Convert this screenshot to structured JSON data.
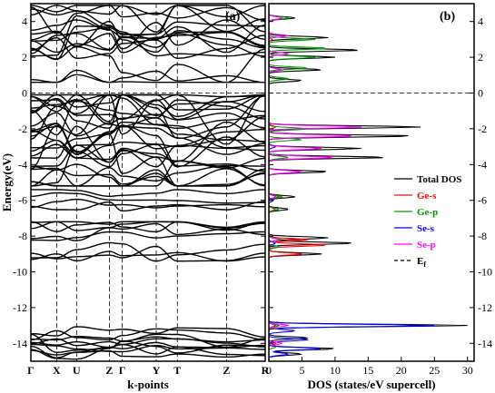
{
  "chart_data": [
    {
      "panel_label": "(a)",
      "type": "line",
      "title": "",
      "xlabel": "k-points",
      "ylabel": "Energy(eV)",
      "ylim": [
        -15,
        5
      ],
      "yticks": [
        4,
        2,
        0,
        -2,
        -4,
        -6,
        -8,
        -10,
        -12,
        -14
      ],
      "ytick_labels": [
        "4",
        "2",
        "0",
        "-2",
        "-4",
        "-6",
        "-8",
        "-10",
        "-12",
        "-14"
      ],
      "kpoints": [
        {
          "label": "Γ",
          "x": 0.0
        },
        {
          "label": "X",
          "x": 0.11
        },
        {
          "label": "U",
          "x": 0.195
        },
        {
          "label": "Z",
          "x": 0.335
        },
        {
          "label": "Γ",
          "x": 0.39
        },
        {
          "label": "Y",
          "x": 0.535
        },
        {
          "label": "T",
          "x": 0.625
        },
        {
          "label": "Z",
          "x": 0.835
        },
        {
          "label": "R",
          "x": 1.0
        }
      ],
      "fermi_level": 0,
      "band_groups": [
        {
          "emin": 0.6,
          "emax": 4.9,
          "count": 16
        },
        {
          "emin": -5.2,
          "emax": -0.1,
          "count": 26
        },
        {
          "emin": -6.9,
          "emax": -5.4,
          "count": 4
        },
        {
          "emin": -9.4,
          "emax": -7.2,
          "count": 8
        },
        {
          "emin": -14.9,
          "emax": -12.8,
          "count": 10
        }
      ]
    },
    {
      "panel_label": "(b)",
      "type": "line",
      "title": "",
      "xlabel": "DOS (states/eV supercell)",
      "xlim": [
        0,
        31
      ],
      "xticks": [
        0,
        5,
        10,
        15,
        20,
        25,
        30
      ],
      "xtick_labels": [
        "0",
        "5",
        "10",
        "15",
        "20",
        "25",
        "30"
      ],
      "ylim": [
        -15,
        5
      ],
      "yticks": [
        4,
        2,
        0,
        -2,
        -4,
        -6,
        -8,
        -10,
        -12,
        -14
      ],
      "ytick_labels": [
        "4",
        "2",
        "0",
        "-2",
        "-4",
        "-6",
        "-8",
        "-10",
        "-12",
        "-14"
      ],
      "fermi_level": 0,
      "legend_position": "right",
      "legend": [
        {
          "label": "Total DOS",
          "color": "#000000",
          "dashed": false
        },
        {
          "label": "Ge-s",
          "color": "#ff0000",
          "dashed": false
        },
        {
          "label": "Ge-p",
          "color": "#009900",
          "dashed": false
        },
        {
          "label": "Se-s",
          "color": "#0000ff",
          "dashed": false
        },
        {
          "label": "Se-p",
          "color": "#ff00ff",
          "dashed": false
        },
        {
          "label": "E",
          "subscript": "f",
          "color": "#000000",
          "dashed": true
        }
      ],
      "series": [
        {
          "name": "Total DOS",
          "color": "#000000",
          "peaks": [
            [
              4.2,
              4
            ],
            [
              3.1,
              9
            ],
            [
              2.4,
              14
            ],
            [
              2.0,
              10
            ],
            [
              1.3,
              8
            ],
            [
              0.7,
              5
            ],
            [
              -1.9,
              23
            ],
            [
              -2.4,
              22
            ],
            [
              -3.1,
              14
            ],
            [
              -3.6,
              18
            ],
            [
              -4.4,
              9
            ],
            [
              -5.8,
              4
            ],
            [
              -6.5,
              3
            ],
            [
              -8.1,
              9
            ],
            [
              -8.4,
              13
            ],
            [
              -9.0,
              8
            ],
            [
              -13.0,
              30
            ],
            [
              -13.7,
              6
            ],
            [
              -14.3,
              10
            ],
            [
              -14.6,
              5
            ]
          ]
        },
        {
          "name": "Ge-s",
          "color": "#ff0000",
          "peaks": [
            [
              3.0,
              0.5
            ],
            [
              -1.9,
              1
            ],
            [
              -5.8,
              1.5
            ],
            [
              -6.5,
              1
            ],
            [
              -8.2,
              6
            ],
            [
              -8.5,
              9
            ],
            [
              -9.0,
              5
            ],
            [
              -13.0,
              1
            ],
            [
              -14.0,
              1
            ]
          ]
        },
        {
          "name": "Ge-p",
          "color": "#009900",
          "peaks": [
            [
              4.2,
              3
            ],
            [
              3.0,
              7
            ],
            [
              2.5,
              9
            ],
            [
              2.0,
              7
            ],
            [
              1.4,
              6
            ],
            [
              0.8,
              3
            ],
            [
              -2.0,
              6
            ],
            [
              -2.6,
              5
            ],
            [
              -3.6,
              3
            ],
            [
              -5.8,
              2
            ],
            [
              -6.5,
              1.5
            ],
            [
              -8.2,
              2
            ],
            [
              -8.6,
              1.5
            ],
            [
              -13.0,
              1.5
            ],
            [
              -14.2,
              1
            ]
          ]
        },
        {
          "name": "Se-s",
          "color": "#0000ff",
          "peaks": [
            [
              -3.0,
              1
            ],
            [
              -6.0,
              0.7
            ],
            [
              -8.4,
              1
            ],
            [
              -13.0,
              25
            ],
            [
              -13.3,
              4
            ],
            [
              -13.8,
              6
            ],
            [
              -14.3,
              8
            ],
            [
              -14.6,
              3
            ]
          ]
        },
        {
          "name": "Se-p",
          "color": "#ff00ff",
          "peaks": [
            [
              4.2,
              2
            ],
            [
              3.2,
              3
            ],
            [
              2.2,
              3
            ],
            [
              1.3,
              2
            ],
            [
              -1.9,
              14
            ],
            [
              -2.4,
              13
            ],
            [
              -3.1,
              8
            ],
            [
              -3.6,
              10
            ],
            [
              -4.4,
              5
            ],
            [
              -5.8,
              1
            ],
            [
              -8.2,
              1.5
            ],
            [
              -13.0,
              3
            ],
            [
              -14.0,
              2
            ]
          ]
        }
      ]
    }
  ]
}
